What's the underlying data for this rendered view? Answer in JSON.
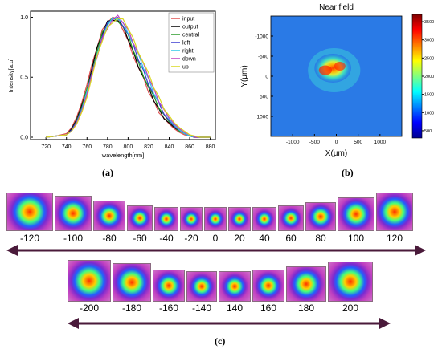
{
  "panel_a": {
    "caption": "(a)",
    "chart_data": {
      "type": "line",
      "xlabel": "wavelength[nm]",
      "ylabel": "Intensity[a.u]",
      "xlim": [
        705,
        885
      ],
      "ylim": [
        -0.02,
        1.05
      ],
      "x_ticks": [
        "720",
        "740",
        "760",
        "780",
        "800",
        "820",
        "840",
        "860",
        "880"
      ],
      "y_ticks": [
        "0.0",
        "0.5",
        "1.0"
      ],
      "legend_position": "top-right",
      "x": [
        720,
        730,
        740,
        745,
        750,
        755,
        760,
        765,
        770,
        775,
        780,
        785,
        790,
        795,
        800,
        805,
        810,
        815,
        820,
        825,
        830,
        835,
        840,
        845,
        850,
        855,
        860,
        865,
        870,
        875,
        880
      ],
      "series": [
        {
          "name": "input",
          "color": "#e05050",
          "values": [
            0.0,
            0.01,
            0.03,
            0.08,
            0.17,
            0.29,
            0.44,
            0.6,
            0.76,
            0.89,
            0.97,
            1.0,
            0.97,
            0.9,
            0.8,
            0.69,
            0.58,
            0.48,
            0.38,
            0.3,
            0.22,
            0.16,
            0.11,
            0.07,
            0.04,
            0.02,
            0.01,
            0.0,
            0.0,
            0.0,
            0.0
          ]
        },
        {
          "name": "output",
          "color": "#000000",
          "values": [
            0.0,
            0.01,
            0.02,
            0.07,
            0.15,
            0.27,
            0.42,
            0.58,
            0.74,
            0.87,
            0.96,
            0.99,
            0.97,
            0.91,
            0.82,
            0.71,
            0.6,
            0.5,
            0.4,
            0.31,
            0.23,
            0.17,
            0.12,
            0.08,
            0.05,
            0.03,
            0.01,
            0.0,
            0.0,
            0.0,
            0.0
          ]
        },
        {
          "name": "central",
          "color": "#2a9a2a",
          "values": [
            0.0,
            0.01,
            0.02,
            0.06,
            0.14,
            0.25,
            0.4,
            0.56,
            0.72,
            0.86,
            0.95,
            0.99,
            0.98,
            0.92,
            0.84,
            0.73,
            0.62,
            0.52,
            0.42,
            0.33,
            0.25,
            0.18,
            0.13,
            0.09,
            0.05,
            0.03,
            0.01,
            0.0,
            0.0,
            0.0,
            0.0
          ]
        },
        {
          "name": "left",
          "color": "#3b3bd0",
          "values": [
            0.0,
            0.01,
            0.02,
            0.06,
            0.13,
            0.24,
            0.38,
            0.54,
            0.7,
            0.84,
            0.94,
            0.99,
            0.99,
            0.94,
            0.86,
            0.76,
            0.65,
            0.55,
            0.45,
            0.36,
            0.27,
            0.2,
            0.14,
            0.09,
            0.06,
            0.03,
            0.01,
            0.0,
            0.0,
            0.0,
            0.0
          ]
        },
        {
          "name": "right",
          "color": "#30c8e8",
          "values": [
            0.0,
            0.01,
            0.02,
            0.05,
            0.12,
            0.23,
            0.37,
            0.53,
            0.69,
            0.83,
            0.93,
            0.98,
            0.99,
            0.95,
            0.88,
            0.78,
            0.68,
            0.58,
            0.48,
            0.38,
            0.29,
            0.22,
            0.15,
            0.1,
            0.06,
            0.03,
            0.01,
            0.0,
            0.0,
            0.0,
            0.0
          ]
        },
        {
          "name": "down",
          "color": "#c040c0",
          "values": [
            0.0,
            0.01,
            0.02,
            0.05,
            0.12,
            0.22,
            0.36,
            0.52,
            0.68,
            0.82,
            0.92,
            0.98,
            1.0,
            0.96,
            0.89,
            0.8,
            0.7,
            0.6,
            0.5,
            0.4,
            0.31,
            0.23,
            0.16,
            0.11,
            0.07,
            0.04,
            0.02,
            0.0,
            0.0,
            0.0,
            0.0
          ]
        },
        {
          "name": "up",
          "color": "#d8d820",
          "values": [
            0.0,
            0.01,
            0.02,
            0.05,
            0.11,
            0.21,
            0.35,
            0.51,
            0.67,
            0.81,
            0.91,
            0.97,
            0.99,
            0.97,
            0.91,
            0.82,
            0.72,
            0.62,
            0.52,
            0.42,
            0.33,
            0.25,
            0.18,
            0.12,
            0.08,
            0.05,
            0.02,
            0.01,
            0.0,
            0.0,
            0.0
          ]
        }
      ]
    }
  },
  "panel_b": {
    "caption": "(b)",
    "chart_data": {
      "type": "heatmap",
      "title": "Near field",
      "xlabel": "X(μm)",
      "ylabel": "Y(μm)",
      "xlim": [
        -1500,
        1500
      ],
      "ylim": [
        -1500,
        1500
      ],
      "x_ticks": [
        "-1000",
        "-500",
        "0",
        "500",
        "1000"
      ],
      "y_ticks": [
        "-1000",
        "-500",
        "0",
        "500",
        "1000"
      ],
      "colorbar_ticks": [
        "500",
        "1000",
        "1500",
        "2000",
        "2500",
        "3000",
        "3500"
      ],
      "colorbar_range": [
        300,
        3700
      ]
    }
  },
  "panel_c": {
    "caption": "(c)",
    "row1_labels": [
      "-120",
      "-100",
      "-80",
      "-60",
      "-40",
      "-20",
      "0",
      "20",
      "40",
      "60",
      "80",
      "100",
      "120"
    ],
    "row2_labels": [
      "-200",
      "-180",
      "-160",
      "-140",
      "140",
      "160",
      "180",
      "200"
    ]
  }
}
